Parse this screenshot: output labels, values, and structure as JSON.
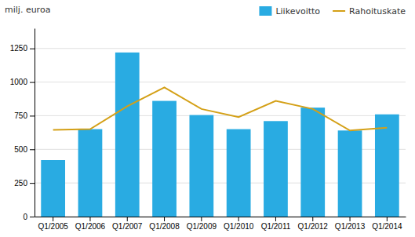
{
  "chart_data": {
    "type": "bar",
    "ylabel": "milj. euroa",
    "categories": [
      "Q1/2005",
      "Q1/2006",
      "Q1/2007",
      "Q1/2008",
      "Q1/2009",
      "Q1/2010",
      "Q1/2011",
      "Q1/2012",
      "Q1/2013",
      "Q1/2014"
    ],
    "series": [
      {
        "name": "Liikevoitto",
        "type": "bar",
        "color": "#29ABE2",
        "values": [
          420,
          650,
          1220,
          860,
          755,
          650,
          710,
          810,
          640,
          760
        ]
      },
      {
        "name": "Rahoituskate",
        "type": "line",
        "color": "#D4A017",
        "values": [
          645,
          650,
          820,
          960,
          800,
          740,
          860,
          800,
          640,
          660
        ]
      }
    ],
    "ylim": [
      0,
      1400
    ],
    "yticks": [
      0,
      250,
      500,
      750,
      1000,
      1250
    ],
    "grid": true,
    "legend": "upper right"
  }
}
